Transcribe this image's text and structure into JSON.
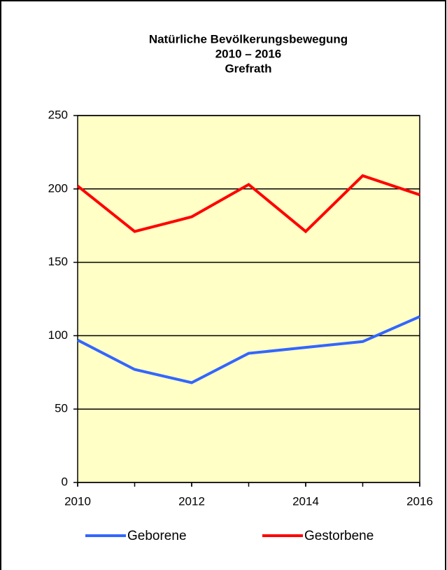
{
  "chart_data": {
    "type": "line",
    "title": [
      "Natürliche Bevölkerungsbewegung",
      "2010 – 2016",
      "Grefrath"
    ],
    "x": [
      2010,
      2011,
      2012,
      2013,
      2014,
      2015,
      2016
    ],
    "xlim": [
      2010,
      2016
    ],
    "xticks": [
      2010,
      2012,
      2014,
      2016
    ],
    "ylim": [
      0,
      250
    ],
    "yticks": [
      0,
      50,
      100,
      150,
      200,
      250
    ],
    "grid": true,
    "legend": "bottom",
    "series": [
      {
        "name": "Geborene",
        "color": "#3366ff",
        "values": [
          97,
          77,
          68,
          88,
          92,
          96,
          113
        ]
      },
      {
        "name": "Gestorbene",
        "color": "#ff0000",
        "values": [
          202,
          171,
          181,
          203,
          171,
          209,
          196
        ]
      }
    ]
  }
}
